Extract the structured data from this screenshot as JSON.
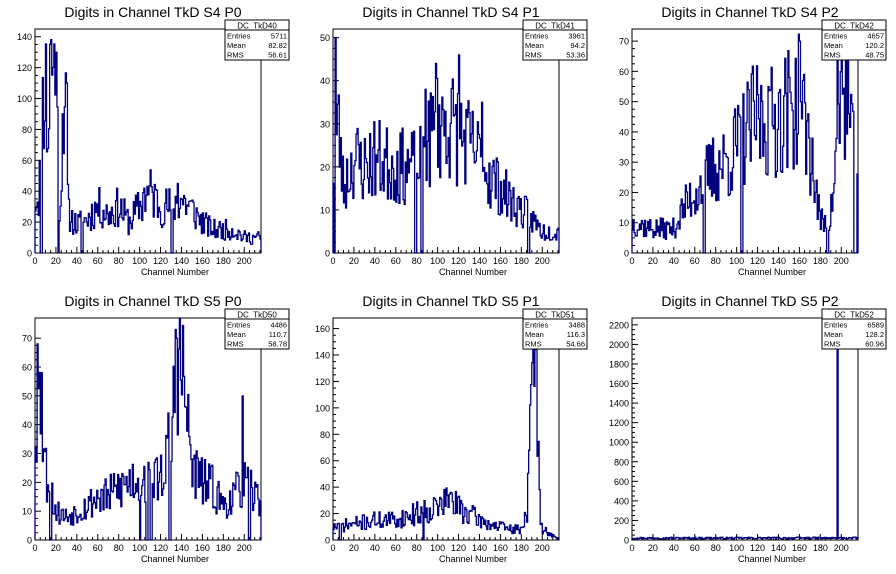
{
  "chart_data": [
    {
      "type": "bar",
      "title": "Digits in Channel TkD S4 P0",
      "xlabel": "Channel Number",
      "ylabel": "",
      "xlim": [
        0,
        216
      ],
      "ylim": [
        0,
        145
      ],
      "yticks": [
        0,
        20,
        40,
        60,
        80,
        100,
        120,
        140
      ],
      "xticks": [
        0,
        20,
        40,
        60,
        80,
        100,
        120,
        140,
        160,
        180,
        200
      ],
      "stats": {
        "name": "DC_TkD40",
        "entries": "5711",
        "mean": "82.82",
        "rms": "56.61"
      },
      "profile": [
        [
          0,
          35
        ],
        [
          4,
          40
        ],
        [
          6,
          80
        ],
        [
          10,
          120
        ],
        [
          12,
          70
        ],
        [
          16,
          130
        ],
        [
          20,
          110
        ],
        [
          24,
          25
        ],
        [
          28,
          120
        ],
        [
          32,
          25
        ],
        [
          40,
          18
        ],
        [
          50,
          22
        ],
        [
          60,
          30
        ],
        [
          70,
          25
        ],
        [
          80,
          30
        ],
        [
          90,
          20
        ],
        [
          100,
          30
        ],
        [
          110,
          40
        ],
        [
          120,
          30
        ],
        [
          130,
          30
        ],
        [
          140,
          35
        ],
        [
          150,
          28
        ],
        [
          160,
          20
        ],
        [
          170,
          15
        ],
        [
          180,
          15
        ],
        [
          190,
          15
        ],
        [
          200,
          10
        ],
        [
          210,
          10
        ],
        [
          216,
          10
        ]
      ],
      "spikes": [
        [
          14,
          135
        ],
        [
          20,
          130
        ],
        [
          30,
          110
        ],
        [
          104,
          42
        ],
        [
          136,
          45
        ]
      ],
      "gaps": [
        [
          5,
          2
        ],
        [
          22,
          1
        ],
        [
          44,
          2
        ],
        [
          130,
          2
        ]
      ],
      "seed": 11
    },
    {
      "type": "bar",
      "title": "Digits in Channel TkD S4 P1",
      "xlabel": "Channel Number",
      "ylabel": "",
      "xlim": [
        0,
        216
      ],
      "ylim": [
        0,
        52
      ],
      "yticks": [
        0,
        10,
        20,
        30,
        40,
        50
      ],
      "xticks": [
        0,
        20,
        40,
        60,
        80,
        100,
        120,
        140,
        160,
        180,
        200
      ],
      "stats": {
        "name": "DC_TkD41",
        "entries": "3961",
        "mean": "94.2",
        "rms": "53.36"
      },
      "profile": [
        [
          0,
          20
        ],
        [
          5,
          30
        ],
        [
          10,
          15
        ],
        [
          20,
          22
        ],
        [
          30,
          20
        ],
        [
          40,
          22
        ],
        [
          60,
          20
        ],
        [
          80,
          20
        ],
        [
          90,
          25
        ],
        [
          100,
          30
        ],
        [
          110,
          30
        ],
        [
          120,
          28
        ],
        [
          130,
          25
        ],
        [
          140,
          22
        ],
        [
          150,
          18
        ],
        [
          160,
          15
        ],
        [
          170,
          12
        ],
        [
          180,
          10
        ],
        [
          190,
          8
        ],
        [
          200,
          5
        ],
        [
          210,
          5
        ],
        [
          216,
          5
        ]
      ],
      "spikes": [
        [
          2,
          50
        ],
        [
          98,
          44
        ],
        [
          120,
          46
        ],
        [
          88,
          38
        ],
        [
          142,
          35
        ]
      ],
      "gaps": [
        [
          78,
          2
        ],
        [
          84,
          2
        ],
        [
          186,
          2
        ],
        [
          1,
          1
        ]
      ],
      "seed": 23
    },
    {
      "type": "bar",
      "title": "Digits in Channel TkD S4 P2",
      "xlabel": "Channel Number",
      "ylabel": "",
      "xlim": [
        0,
        216
      ],
      "ylim": [
        0,
        74
      ],
      "yticks": [
        0,
        10,
        20,
        30,
        40,
        50,
        60,
        70
      ],
      "xticks": [
        0,
        20,
        40,
        60,
        80,
        100,
        120,
        140,
        160,
        180,
        200
      ],
      "stats": {
        "name": "DC_TkD42",
        "entries": "4657",
        "mean": "120.2",
        "rms": "48.75"
      },
      "profile": [
        [
          0,
          10
        ],
        [
          20,
          8
        ],
        [
          40,
          8
        ],
        [
          50,
          15
        ],
        [
          60,
          20
        ],
        [
          70,
          25
        ],
        [
          80,
          28
        ],
        [
          90,
          30
        ],
        [
          100,
          35
        ],
        [
          110,
          40
        ],
        [
          120,
          45
        ],
        [
          130,
          42
        ],
        [
          140,
          45
        ],
        [
          150,
          48
        ],
        [
          160,
          50
        ],
        [
          170,
          35
        ],
        [
          180,
          10
        ],
        [
          190,
          12
        ],
        [
          196,
          35
        ],
        [
          200,
          55
        ],
        [
          205,
          50
        ],
        [
          210,
          35
        ],
        [
          216,
          30
        ]
      ],
      "spikes": [
        [
          160,
          70
        ],
        [
          196,
          70
        ],
        [
          206,
          70
        ],
        [
          150,
          58
        ],
        [
          130,
          55
        ]
      ],
      "gaps": [
        [
          68,
          2
        ],
        [
          104,
          2
        ],
        [
          186,
          2
        ],
        [
          212,
          3
        ]
      ],
      "seed": 37
    },
    {
      "type": "bar",
      "title": "Digits in Channel TkD S5 P0",
      "xlabel": "Channel Number",
      "ylabel": "",
      "xlim": [
        0,
        216
      ],
      "ylim": [
        0,
        77
      ],
      "yticks": [
        0,
        10,
        20,
        30,
        40,
        50,
        60,
        70
      ],
      "xticks": [
        0,
        20,
        40,
        60,
        80,
        100,
        120,
        140,
        160,
        180,
        200
      ],
      "stats": {
        "name": "DC_TkD50",
        "entries": "4486",
        "mean": "110.7",
        "rms": "58.78"
      },
      "profile": [
        [
          0,
          40
        ],
        [
          5,
          50
        ],
        [
          10,
          25
        ],
        [
          20,
          10
        ],
        [
          30,
          8
        ],
        [
          40,
          10
        ],
        [
          50,
          12
        ],
        [
          60,
          15
        ],
        [
          70,
          15
        ],
        [
          80,
          18
        ],
        [
          90,
          20
        ],
        [
          100,
          22
        ],
        [
          110,
          20
        ],
        [
          120,
          22
        ],
        [
          130,
          35
        ],
        [
          136,
          65
        ],
        [
          140,
          60
        ],
        [
          146,
          40
        ],
        [
          150,
          25
        ],
        [
          160,
          20
        ],
        [
          170,
          18
        ],
        [
          180,
          12
        ],
        [
          190,
          15
        ],
        [
          200,
          20
        ],
        [
          210,
          15
        ],
        [
          216,
          15
        ]
      ],
      "spikes": [
        [
          2,
          68
        ],
        [
          6,
          58
        ],
        [
          134,
          73
        ],
        [
          198,
          50
        ]
      ],
      "gaps": [
        [
          14,
          2
        ],
        [
          100,
          1
        ],
        [
          106,
          2
        ],
        [
          110,
          2
        ],
        [
          128,
          2
        ],
        [
          204,
          2
        ]
      ],
      "seed": 53
    },
    {
      "type": "bar",
      "title": "Digits in Channel TkD S5 P1",
      "xlabel": "Channel Number",
      "ylabel": "",
      "xlim": [
        0,
        216
      ],
      "ylim": [
        0,
        168
      ],
      "yticks": [
        0,
        20,
        40,
        60,
        80,
        100,
        120,
        140,
        160
      ],
      "xticks": [
        0,
        20,
        40,
        60,
        80,
        100,
        120,
        140,
        160,
        180,
        200
      ],
      "stats": {
        "name": "DC_TkD51",
        "entries": "3488",
        "mean": "116.3",
        "rms": "54.66"
      },
      "profile": [
        [
          0,
          10
        ],
        [
          20,
          12
        ],
        [
          40,
          15
        ],
        [
          60,
          15
        ],
        [
          80,
          20
        ],
        [
          100,
          25
        ],
        [
          110,
          30
        ],
        [
          120,
          25
        ],
        [
          130,
          20
        ],
        [
          140,
          15
        ],
        [
          150,
          12
        ],
        [
          160,
          10
        ],
        [
          170,
          8
        ],
        [
          180,
          8
        ],
        [
          186,
          25
        ],
        [
          190,
          120
        ],
        [
          194,
          160
        ],
        [
          198,
          10
        ],
        [
          216,
          0
        ]
      ],
      "spikes": [
        [
          112,
          36
        ],
        [
          96,
          32
        ],
        [
          194,
          168
        ]
      ],
      "gaps": [
        [
          6,
          2
        ],
        [
          86,
          1
        ]
      ],
      "seed": 71
    },
    {
      "type": "bar",
      "title": "Digits in Channel TkD S5 P2",
      "xlabel": "Channel Number",
      "ylabel": "",
      "xlim": [
        0,
        216
      ],
      "ylim": [
        0,
        2270
      ],
      "yticks": [
        0,
        200,
        400,
        600,
        800,
        1000,
        1200,
        1400,
        1600,
        1800,
        2000,
        2200
      ],
      "xticks": [
        0,
        20,
        40,
        60,
        80,
        100,
        120,
        140,
        160,
        180,
        200
      ],
      "stats": {
        "name": "DC_TkD52",
        "entries": "6589",
        "mean": "128.2",
        "rms": "60.96"
      },
      "profile": [
        [
          0,
          20
        ],
        [
          216,
          20
        ]
      ],
      "spikes": [
        [
          196,
          2270
        ]
      ],
      "gaps": [],
      "seed": 97
    }
  ],
  "labels": {
    "entries": "Entries",
    "mean": "Mean",
    "rms": "RMS"
  },
  "colors": {
    "histogram": "#000080",
    "axis": "#000000",
    "background": "#ffffff"
  }
}
